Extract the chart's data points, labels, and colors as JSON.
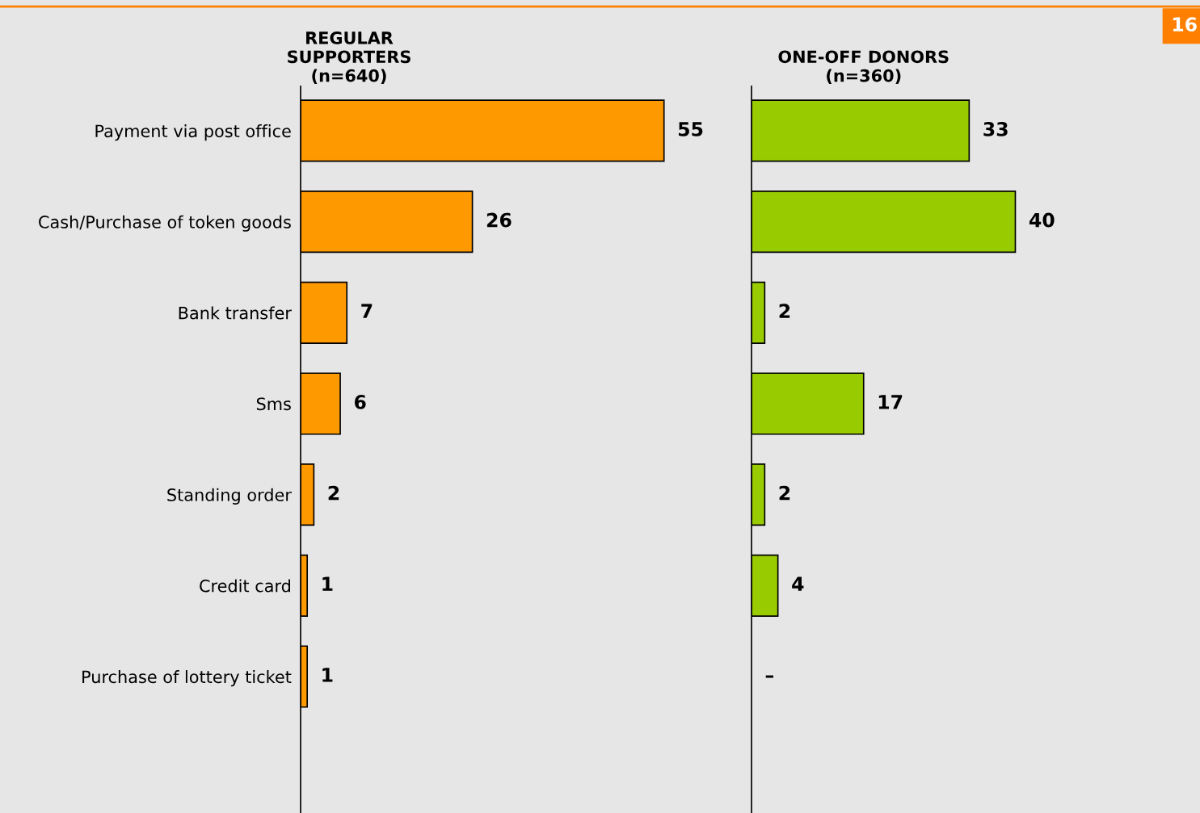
{
  "chart_data": [
    {
      "type": "bar",
      "orientation": "horizontal",
      "title": "REGULAR\nSUPPORTERS\n(n=640)",
      "categories": [
        "Payment via post office",
        "Cash/Purchase of token goods",
        "Bank transfer",
        "Sms",
        "Standing order",
        "Credit card",
        "Purchase of lottery ticket"
      ],
      "values": [
        55,
        26,
        7,
        6,
        2,
        1,
        1
      ],
      "color": "#ff9900",
      "xlim": [
        0,
        68
      ],
      "data_labels": true,
      "tick_labels": "y",
      "grid": false,
      "legend": false,
      "annotations": [
        "16"
      ]
    },
    {
      "type": "bar",
      "orientation": "horizontal",
      "title": "ONE-OFF DONORS\n(n=360)",
      "categories": [
        null,
        null,
        null,
        null,
        null,
        null,
        null
      ],
      "values": [
        33,
        40,
        2,
        17,
        2,
        4,
        null
      ],
      "value_labels": [
        "33",
        "40",
        "2",
        "17",
        "2",
        "4",
        "–"
      ],
      "color": "#99cc00",
      "xlim": [
        0,
        68
      ],
      "tick_labels": false,
      "grid": false,
      "legend": false
    }
  ]
}
